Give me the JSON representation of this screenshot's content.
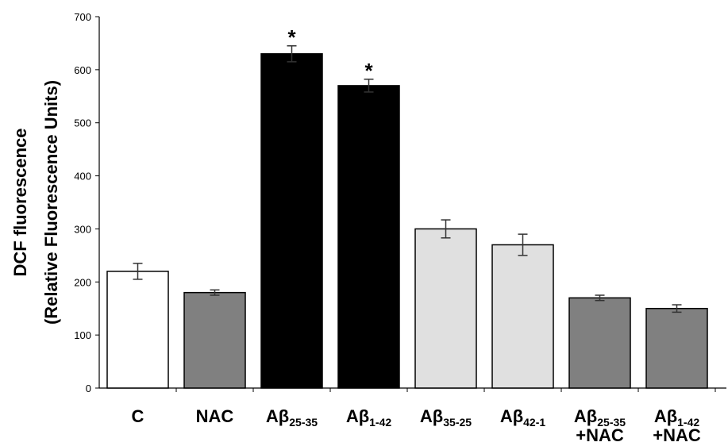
{
  "chart_data": {
    "type": "bar",
    "ylabel": [
      "DCF fluorescence",
      "(Relative Fluorescence Units)"
    ],
    "xlabel": "",
    "ylim": [
      0,
      700
    ],
    "yticks": [
      0,
      100,
      200,
      300,
      400,
      500,
      600,
      700
    ],
    "grid": false,
    "legend": "none",
    "categories": [
      {
        "main": "C",
        "sub": "",
        "line2": ""
      },
      {
        "main": "NAC",
        "sub": "",
        "line2": ""
      },
      {
        "main": "Aβ",
        "sub": "25-35",
        "line2": ""
      },
      {
        "main": "Aβ",
        "sub": "1-42",
        "line2": ""
      },
      {
        "main": "Aβ",
        "sub": "35-25",
        "line2": ""
      },
      {
        "main": "Aβ",
        "sub": "42-1",
        "line2": ""
      },
      {
        "main": "Aβ",
        "sub": "25-35",
        "line2": "+NAC"
      },
      {
        "main": "Aβ",
        "sub": "1-42",
        "line2": "+NAC"
      }
    ],
    "values": [
      220,
      180,
      630,
      570,
      300,
      270,
      170,
      150
    ],
    "errors": [
      15,
      5,
      15,
      12,
      17,
      20,
      5,
      7
    ],
    "colors": [
      "#ffffff",
      "#808080",
      "#000000",
      "#000000",
      "#e0e0e0",
      "#e0e0e0",
      "#808080",
      "#808080"
    ],
    "annotations": [
      "",
      "",
      "*",
      "*",
      "",
      "",
      "",
      ""
    ]
  }
}
